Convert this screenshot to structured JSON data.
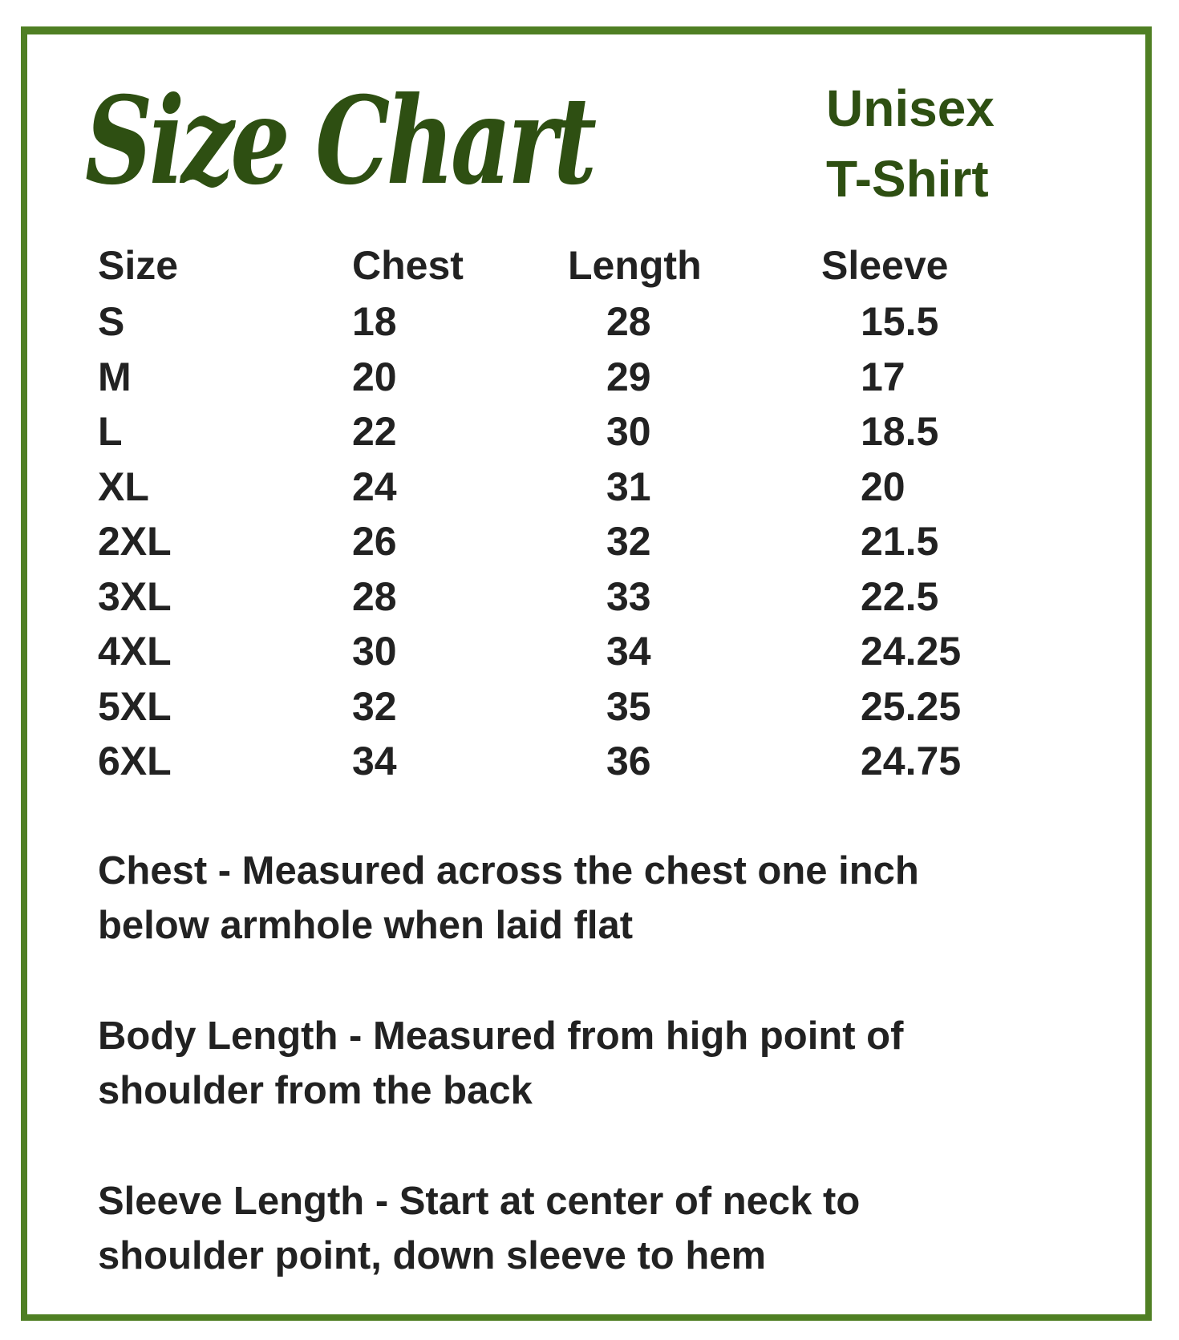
{
  "title": "Size Chart",
  "subtitle": [
    "Unisex",
    "T-Shirt"
  ],
  "colors": {
    "border": "#4f7f23",
    "title": "#2e4f12",
    "text": "#222222"
  },
  "table": {
    "headers": [
      "Size",
      "Chest",
      "Length",
      "Sleeve"
    ],
    "rows": [
      [
        "S",
        "18",
        "28",
        "15.5"
      ],
      [
        "M",
        "20",
        "29",
        "17"
      ],
      [
        "L",
        "22",
        "30",
        "18.5"
      ],
      [
        "XL",
        "24",
        "31",
        "20"
      ],
      [
        "2XL",
        "26",
        "32",
        "21.5"
      ],
      [
        "3XL",
        "28",
        "33",
        "22.5"
      ],
      [
        "4XL",
        "30",
        "34",
        "24.25"
      ],
      [
        "5XL",
        "32",
        "35",
        "25.25"
      ],
      [
        "6XL",
        "34",
        "36",
        "24.75"
      ]
    ]
  },
  "notes": [
    [
      "Chest - Measured across the chest one inch",
      "below armhole when laid flat"
    ],
    [
      "Body Length - Measured from high point of",
      "shoulder from the back"
    ],
    [
      "Sleeve Length - Start at center of neck to",
      "shoulder point, down sleeve to hem"
    ]
  ]
}
